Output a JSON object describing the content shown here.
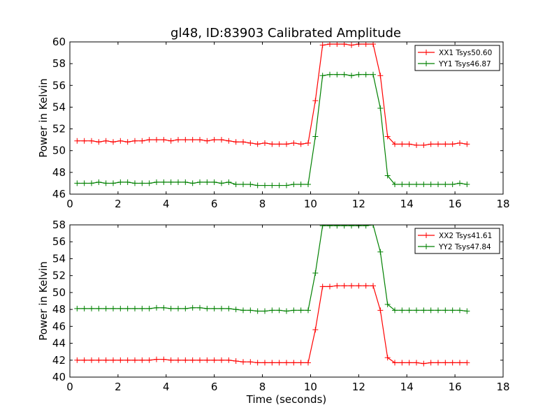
{
  "title": "gl48, ID:83903 Calibrated Amplitude",
  "chart_data": [
    {
      "type": "line",
      "xlabel": "",
      "ylabel": "Power in Kelvin",
      "xlim": [
        0,
        18
      ],
      "ylim": [
        46,
        60
      ],
      "xticks": [
        "0",
        "2",
        "4",
        "6",
        "8",
        "10",
        "12",
        "14",
        "16",
        "18"
      ],
      "yticks": [
        "46",
        "48",
        "50",
        "52",
        "54",
        "56",
        "58",
        "60"
      ],
      "legend_position": "top-right",
      "x": [
        0.3,
        0.6,
        0.9,
        1.2,
        1.5,
        1.8,
        2.1,
        2.4,
        2.7,
        3.0,
        3.3,
        3.6,
        3.9,
        4.2,
        4.5,
        4.8,
        5.1,
        5.4,
        5.7,
        6.0,
        6.3,
        6.6,
        6.9,
        7.2,
        7.5,
        7.8,
        8.1,
        8.4,
        8.7,
        9.0,
        9.3,
        9.6,
        9.9,
        10.2,
        10.5,
        10.8,
        11.1,
        11.4,
        11.7,
        12.0,
        12.3,
        12.6,
        12.9,
        13.2,
        13.5,
        13.8,
        14.1,
        14.4,
        14.7,
        15.0,
        15.3,
        15.6,
        15.9,
        16.2,
        16.5
      ],
      "series": [
        {
          "name": "XX1 Tsys50.60",
          "color": "#ff0000",
          "values": [
            50.9,
            50.9,
            50.9,
            50.8,
            50.9,
            50.8,
            50.9,
            50.8,
            50.9,
            50.9,
            51.0,
            51.0,
            51.0,
            50.9,
            51.0,
            51.0,
            51.0,
            51.0,
            50.9,
            51.0,
            51.0,
            50.9,
            50.8,
            50.8,
            50.7,
            50.6,
            50.7,
            50.6,
            50.6,
            50.6,
            50.7,
            50.6,
            50.7,
            54.6,
            59.7,
            59.8,
            59.8,
            59.8,
            59.7,
            59.8,
            59.8,
            59.8,
            56.9,
            51.3,
            50.6,
            50.6,
            50.6,
            50.5,
            50.5,
            50.6,
            50.6,
            50.6,
            50.6,
            50.7,
            50.6
          ]
        },
        {
          "name": "YY1 Tsys46.87",
          "color": "#008000",
          "values": [
            47.0,
            47.0,
            47.0,
            47.1,
            47.0,
            47.0,
            47.1,
            47.1,
            47.0,
            47.0,
            47.0,
            47.1,
            47.1,
            47.1,
            47.1,
            47.1,
            47.0,
            47.1,
            47.1,
            47.1,
            47.0,
            47.1,
            46.9,
            46.9,
            46.9,
            46.8,
            46.8,
            46.8,
            46.8,
            46.8,
            46.9,
            46.9,
            46.9,
            51.3,
            56.9,
            57.0,
            57.0,
            57.0,
            56.9,
            57.0,
            57.0,
            57.0,
            53.9,
            47.7,
            46.9,
            46.9,
            46.9,
            46.9,
            46.9,
            46.9,
            46.9,
            46.9,
            46.9,
            47.0,
            46.9
          ]
        }
      ]
    },
    {
      "type": "line",
      "xlabel": "Time (seconds)",
      "ylabel": "Power in Kelvin",
      "xlim": [
        0,
        18
      ],
      "ylim": [
        40,
        58
      ],
      "xticks": [
        "0",
        "2",
        "4",
        "6",
        "8",
        "10",
        "12",
        "14",
        "16",
        "18"
      ],
      "yticks": [
        "40",
        "42",
        "44",
        "46",
        "48",
        "50",
        "52",
        "54",
        "56",
        "58"
      ],
      "legend_position": "top-right",
      "x": [
        0.3,
        0.6,
        0.9,
        1.2,
        1.5,
        1.8,
        2.1,
        2.4,
        2.7,
        3.0,
        3.3,
        3.6,
        3.9,
        4.2,
        4.5,
        4.8,
        5.1,
        5.4,
        5.7,
        6.0,
        6.3,
        6.6,
        6.9,
        7.2,
        7.5,
        7.8,
        8.1,
        8.4,
        8.7,
        9.0,
        9.3,
        9.6,
        9.9,
        10.2,
        10.5,
        10.8,
        11.1,
        11.4,
        11.7,
        12.0,
        12.3,
        12.6,
        12.9,
        13.2,
        13.5,
        13.8,
        14.1,
        14.4,
        14.7,
        15.0,
        15.3,
        15.6,
        15.9,
        16.2,
        16.5
      ],
      "series": [
        {
          "name": "XX2 Tsys41.61",
          "color": "#ff0000",
          "values": [
            42.0,
            42.0,
            42.0,
            42.0,
            42.0,
            42.0,
            42.0,
            42.0,
            42.0,
            42.0,
            42.0,
            42.1,
            42.1,
            42.0,
            42.0,
            42.0,
            42.0,
            42.0,
            42.0,
            42.0,
            42.0,
            42.0,
            41.9,
            41.8,
            41.8,
            41.7,
            41.7,
            41.7,
            41.7,
            41.7,
            41.7,
            41.7,
            41.7,
            45.6,
            50.7,
            50.7,
            50.8,
            50.8,
            50.8,
            50.8,
            50.8,
            50.8,
            47.9,
            42.3,
            41.7,
            41.7,
            41.7,
            41.7,
            41.6,
            41.7,
            41.7,
            41.7,
            41.7,
            41.7,
            41.7
          ]
        },
        {
          "name": "YY2 Tsys47.84",
          "color": "#008000",
          "values": [
            48.1,
            48.1,
            48.1,
            48.1,
            48.1,
            48.1,
            48.1,
            48.1,
            48.1,
            48.1,
            48.1,
            48.2,
            48.2,
            48.1,
            48.1,
            48.1,
            48.2,
            48.2,
            48.1,
            48.1,
            48.1,
            48.1,
            48.0,
            47.9,
            47.9,
            47.8,
            47.8,
            47.9,
            47.9,
            47.8,
            47.9,
            47.9,
            47.9,
            52.3,
            57.9,
            57.9,
            57.9,
            57.9,
            57.9,
            57.9,
            57.9,
            58.0,
            54.8,
            48.6,
            47.9,
            47.9,
            47.9,
            47.9,
            47.9,
            47.9,
            47.9,
            47.9,
            47.9,
            47.9,
            47.8
          ]
        }
      ]
    }
  ]
}
